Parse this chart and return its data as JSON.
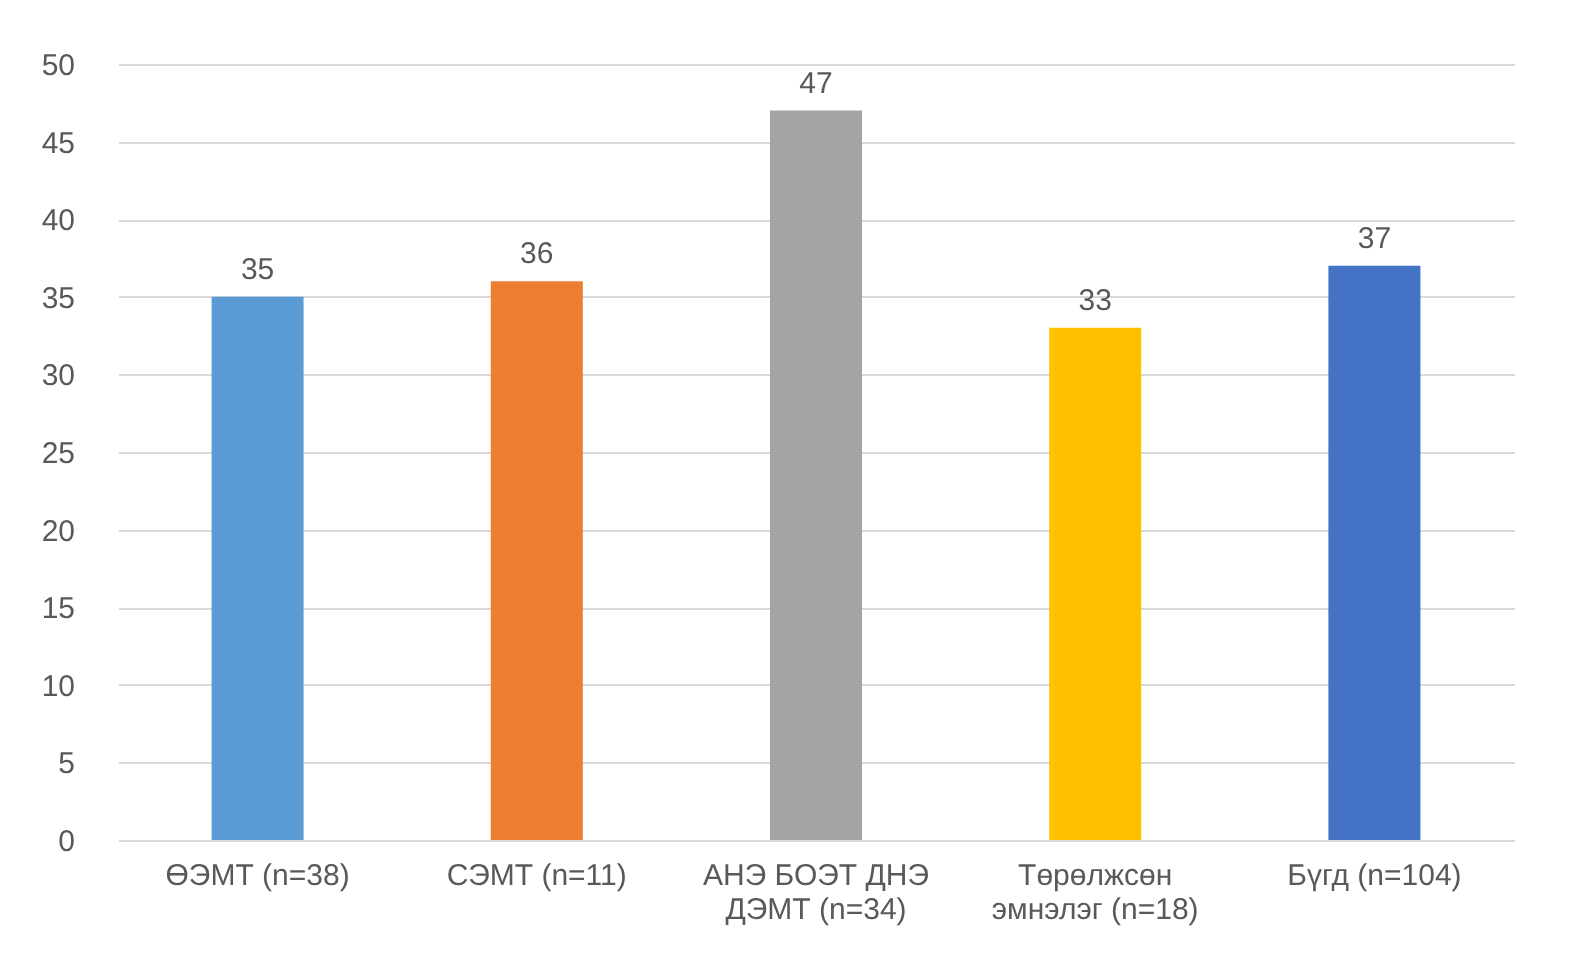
{
  "chart_data": {
    "type": "bar",
    "categories": [
      "ӨЭМТ (n=38)",
      "СЭМТ (n=11)",
      "АНЭ БОЭТ ДНЭ ДЭМТ (n=34)",
      "Төрөлжсөн эмнэлэг (n=18)",
      "Бүгд (n=104)"
    ],
    "values": [
      35,
      36,
      47,
      33,
      37
    ],
    "colors": [
      "#5b9bd5",
      "#ed7d31",
      "#a5a5a5",
      "#ffc000",
      "#4472c4"
    ],
    "ylim": [
      0,
      50
    ],
    "yticks": [
      0,
      5,
      10,
      15,
      20,
      25,
      30,
      35,
      40,
      45,
      50
    ],
    "grid": "y",
    "data_labels": true
  }
}
